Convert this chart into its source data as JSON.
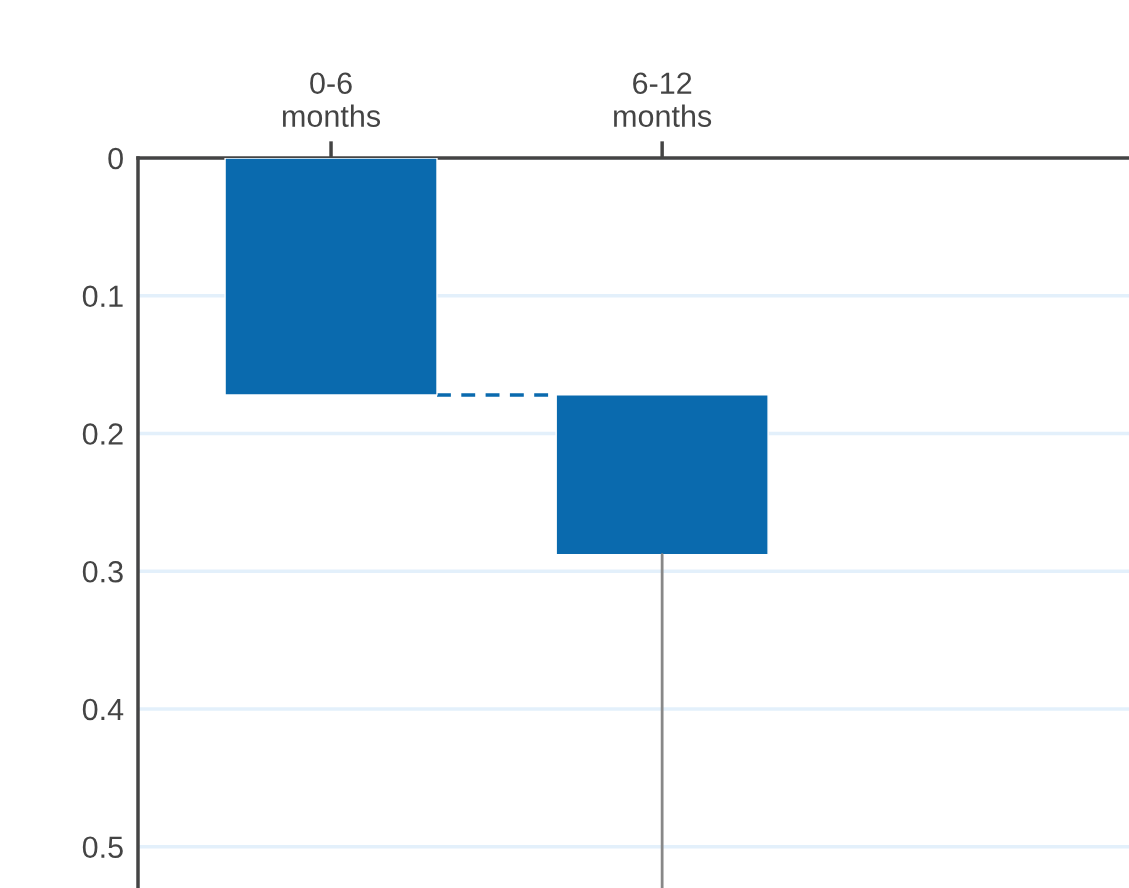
{
  "chart_data": {
    "type": "bar",
    "categories": [
      "0-6\nmonths",
      "6-12\nmonths"
    ],
    "base": [
      0,
      0.172
    ],
    "values": [
      0.172,
      0.116
    ],
    "errors": [
      null,
      [
        0.288,
        0.53
      ]
    ],
    "color": "#0a6aae",
    "ylim": [
      0.53,
      0
    ],
    "yticks": [
      0,
      0.1,
      0.2,
      0.3,
      0.4,
      0.5
    ],
    "grid": "y"
  }
}
